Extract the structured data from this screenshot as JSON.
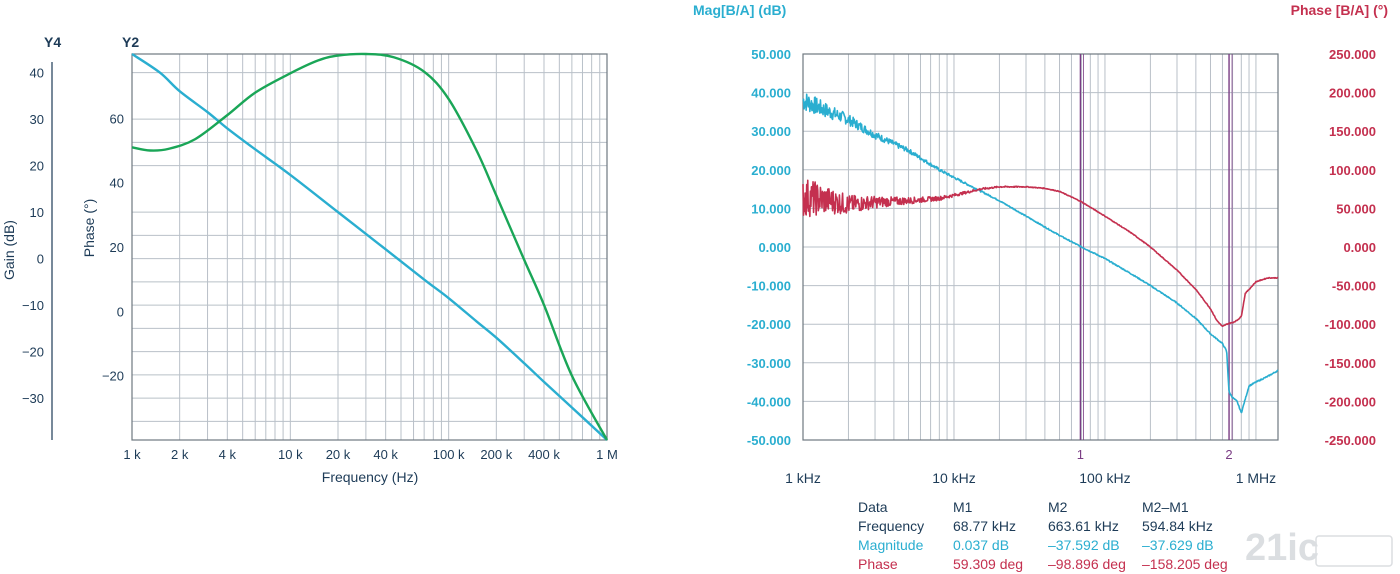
{
  "chart_data": [
    {
      "type": "line",
      "title": "",
      "xlabel": "Frequency (Hz)",
      "x_scale": "log",
      "xlim": [
        1000,
        1000000
      ],
      "x_ticks": [
        1000,
        2000,
        4000,
        10000,
        20000,
        40000,
        100000,
        200000,
        400000,
        1000000
      ],
      "x_tick_labels": [
        "1 k",
        "2 k",
        "4 k",
        "10 k",
        "20 k",
        "40 k",
        "100 k",
        "200 k",
        "400 k",
        "1 M"
      ],
      "y_axes": [
        {
          "id": "Y4",
          "label": "Gain (dB)",
          "ylim": [
            -39,
            44
          ],
          "ticks": [
            40,
            30,
            20,
            10,
            0,
            -10,
            -20,
            -30
          ],
          "tick_labels": [
            "40",
            "30",
            "20",
            "10",
            "0",
            "−10",
            "−20",
            "−30"
          ]
        },
        {
          "id": "Y2",
          "label": "Phase (°)",
          "ylim": [
            -40,
            80
          ],
          "ticks": [
            60,
            40,
            20,
            0,
            -20
          ],
          "tick_labels": [
            "60",
            "40",
            "20",
            "0",
            "−20"
          ]
        }
      ],
      "grid": true,
      "series": [
        {
          "axis": "Y4",
          "color": "#2aaed0",
          "x": [
            1000,
            1500,
            2000,
            3000,
            4000,
            6000,
            10000,
            20000,
            40000,
            70000,
            100000,
            150000,
            200000,
            300000,
            400000,
            600000,
            1000000
          ],
          "y": [
            44,
            40,
            36,
            31.5,
            28,
            23.5,
            18,
            10,
            2,
            -4.5,
            -8.5,
            -13.5,
            -17,
            -22.5,
            -26.5,
            -32,
            -39
          ]
        },
        {
          "axis": "Y2",
          "color": "#1aa657",
          "x": [
            1000,
            1300,
            1700,
            2500,
            4000,
            6000,
            10000,
            15000,
            20000,
            30000,
            45000,
            70000,
            100000,
            150000,
            200000,
            300000,
            400000,
            600000,
            1000000
          ],
          "y": [
            51,
            50,
            50.5,
            53.5,
            61,
            68,
            74,
            78,
            79.5,
            80,
            79,
            74.5,
            66,
            50,
            36,
            16,
            2,
            -20,
            -40
          ]
        }
      ]
    },
    {
      "type": "line",
      "title": "",
      "xlabel": "",
      "x_scale": "log",
      "xlim": [
        1000,
        1400000
      ],
      "x_ticks": [
        1000,
        10000,
        100000,
        1000000
      ],
      "x_tick_labels": [
        "1 kHz",
        "10 kHz",
        "100 kHz",
        "1 MHz"
      ],
      "markers": [
        {
          "label": "1",
          "x": 68770
        },
        {
          "label": "2",
          "x": 663610
        }
      ],
      "y_axes": [
        {
          "id": "mag",
          "label": "Mag[B/A] (dB)",
          "ylim": [
            -50,
            50
          ],
          "ticks": [
            50,
            40,
            30,
            20,
            10,
            0,
            -10,
            -20,
            -30,
            -40,
            -50
          ],
          "tick_labels": [
            "50.000",
            "40.000",
            "30.000",
            "20.000",
            "10.000",
            "0.000",
            "-10.000",
            "-20.000",
            "-30.000",
            "-40.000",
            "-50.000"
          ],
          "color": "#2aaed0"
        },
        {
          "id": "phase",
          "label": "Phase [B/A] (°)",
          "ylim": [
            -250,
            250
          ],
          "ticks": [
            250,
            200,
            150,
            100,
            50,
            0,
            -50,
            -100,
            -150,
            -200,
            -250
          ],
          "tick_labels": [
            "250.000",
            "200.000",
            "150.000",
            "100.000",
            "50.000",
            "0.000",
            "-50.000",
            "-100.000",
            "-150.000",
            "-200.000",
            "-250.000"
          ],
          "color": "#c4304f"
        }
      ],
      "grid": true,
      "series": [
        {
          "axis": "mag",
          "color": "#2aaed0",
          "x": [
            1000,
            1500,
            2000,
            3000,
            5000,
            8000,
            10000,
            20000,
            30000,
            50000,
            70000,
            100000,
            150000,
            200000,
            300000,
            400000,
            500000,
            600000,
            640000,
            663610,
            700000,
            750000,
            800000,
            900000,
            1000000,
            1200000,
            1400000
          ],
          "y": [
            38,
            35,
            33,
            29,
            25,
            20,
            18,
            12,
            8,
            3,
            0,
            -3,
            -7,
            -10,
            -14.5,
            -18.5,
            -22.5,
            -25,
            -27,
            -37.6,
            -39,
            -40,
            -43,
            -36,
            -35,
            -33.5,
            -32
          ]
        },
        {
          "axis": "phase",
          "color": "#c4304f",
          "x": [
            1000,
            1500,
            2000,
            3000,
            5000,
            8000,
            10000,
            15000,
            20000,
            30000,
            40000,
            50000,
            68770,
            100000,
            150000,
            200000,
            300000,
            400000,
            500000,
            550000,
            600000,
            640000,
            663610,
            700000,
            750000,
            800000,
            850000,
            900000,
            1000000,
            1200000,
            1400000
          ],
          "y": [
            65,
            60,
            55,
            58,
            60,
            63,
            67,
            75,
            78,
            78,
            76,
            72,
            59.3,
            40,
            18,
            0,
            -30,
            -55,
            -80,
            -95,
            -103,
            -100,
            -98.9,
            -98,
            -95,
            -90,
            -60,
            -55,
            -45,
            -40,
            -40
          ]
        }
      ]
    }
  ],
  "labels": {
    "left_y4": "Y4",
    "left_y2": "Y2",
    "gain_label": "Gain (dB)",
    "phase_label": "Phase (°)",
    "freq_label": "Frequency (Hz)",
    "mag_label": "Mag[B/A] (dB)",
    "phase_right_label": "Phase [B/A] (°)"
  },
  "table": {
    "header": [
      "Data",
      "M1",
      "M2",
      "M2–M1"
    ],
    "rows": [
      {
        "name": "Frequency",
        "m1": "68.77 kHz",
        "m2": "663.61 kHz",
        "diff": "594.84 kHz",
        "color": "#1d3b57"
      },
      {
        "name": "Magnitude",
        "m1": "0.037 dB",
        "m2": "–37.592 dB",
        "diff": "–37.629 dB",
        "color": "#2aaed0"
      },
      {
        "name": "Phase",
        "m1": "59.309 deg",
        "m2": "–98.896 deg",
        "diff": "–158.205 deg",
        "color": "#c4304f"
      }
    ]
  },
  "watermark": "21ic"
}
